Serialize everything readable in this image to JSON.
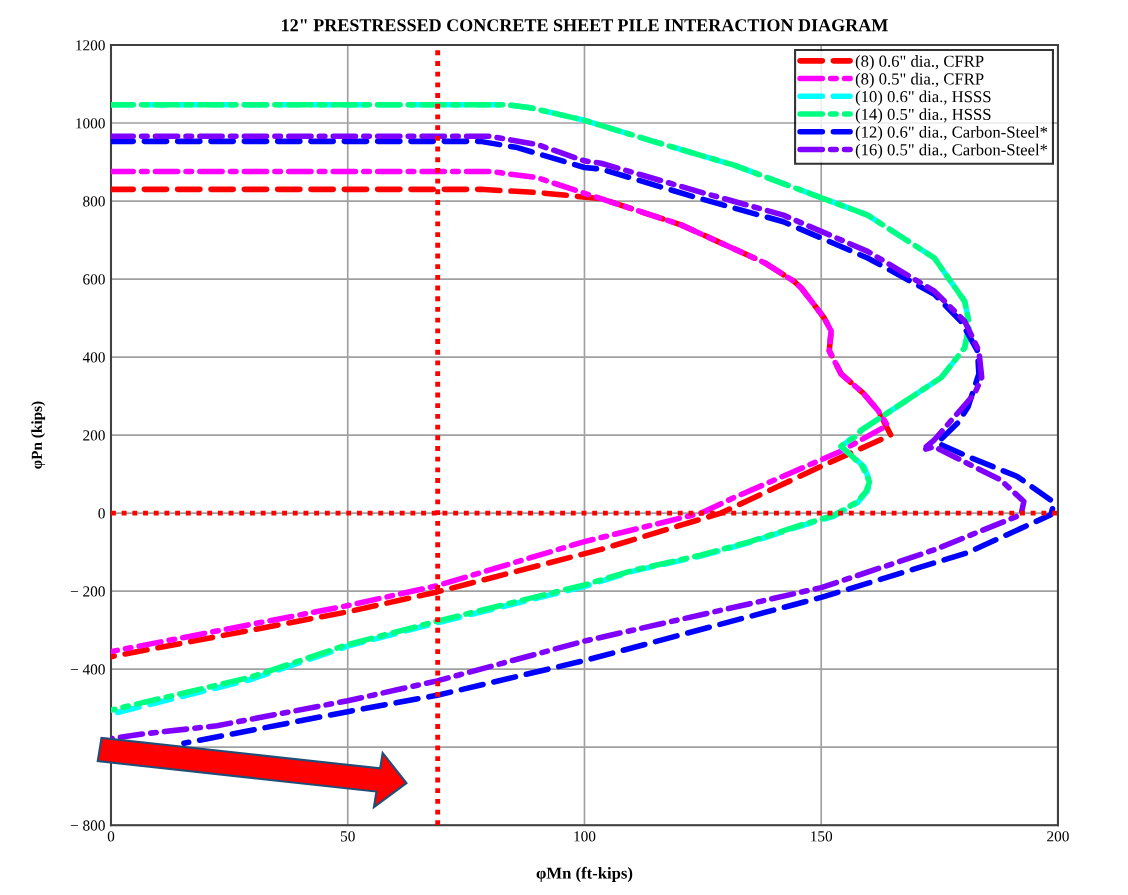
{
  "chart_data": {
    "type": "line",
    "title": "12\" PRESTRESSED CONCRETE SHEET PILE INTERACTION DIAGRAM",
    "xlabel": "φMn (ft-kips)",
    "ylabel": "φPn (kips)",
    "xlim": [
      0,
      200
    ],
    "xticks": [
      0,
      50,
      100,
      150,
      200
    ],
    "ylim": [
      -800,
      1200
    ],
    "yticks": [
      {
        "value": -800,
        "label": "− 800"
      },
      {
        "value": -600,
        "label": null
      },
      {
        "value": -400,
        "label": "− 400"
      },
      {
        "value": -200,
        "label": "− 200"
      },
      0,
      200,
      400,
      600,
      800,
      1000,
      1200
    ],
    "grid": true,
    "legend": "top right",
    "marker": "none",
    "ref_lines": [
      {
        "axis": "y",
        "value": 0,
        "color": "#ff0000",
        "line_style": "dotted"
      },
      {
        "axis": "x",
        "value": 69,
        "color": "#ff0000",
        "line_style": "dotted"
      }
    ],
    "series": [
      {
        "name": "(8) 0.6\" dia., CFRP",
        "color": "#ff0000",
        "line_style": "dashed",
        "x": [
          0,
          40,
          78,
          90,
          103.5,
          120.4,
          128.2,
          138,
          144.3,
          145.8,
          150.6,
          152.1,
          151.7,
          154.2,
          159,
          162,
          164.7,
          150,
          128.8,
          103.5,
          68.9,
          50,
          0
        ],
        "values": [
          830,
          830,
          830,
          822,
          806,
          739,
          696,
          642,
          594,
          577,
          501,
          467,
          416,
          357,
          306,
          263,
          200,
          120,
          0,
          -93,
          -202,
          -253,
          -368
        ]
      },
      {
        "name": "(8) 0.5\" dia., CFRP",
        "color": "#ff00ff",
        "line_style": "dashdot",
        "x": [
          0,
          40,
          80,
          90,
          103.5,
          120.4,
          128.2,
          138,
          144.3,
          145.8,
          150.6,
          152.1,
          151.7,
          154.2,
          159,
          162,
          164,
          154,
          131.6,
          124.6,
          100,
          68.9,
          50,
          0
        ],
        "values": [
          876,
          876,
          876,
          860,
          806,
          739,
          696,
          642,
          594,
          577,
          501,
          467,
          416,
          357,
          306,
          263,
          225,
          158,
          40,
          0,
          -73,
          -186,
          -237,
          -355
        ]
      },
      {
        "name": "(10) 0.6\" dia., HSSS",
        "color": "#00ffff",
        "line_style": "dashed",
        "x": [
          0,
          40,
          83.7,
          88.6,
          100,
          115.4,
          131.6,
          159.8,
          173.9,
          180.3,
          181.3,
          180.3,
          175.4,
          166.9,
          158.4,
          154.2,
          159,
          160.4,
          159.7,
          157.7,
          152.6,
          145.6,
          135,
          124.5,
          110.5,
          100,
          68.9,
          50,
          29.4,
          0
        ],
        "values": [
          1047,
          1047,
          1047,
          1039,
          1007,
          950,
          892,
          764,
          654,
          543,
          484,
          424,
          348,
          280,
          212,
          170,
          120,
          78,
          56,
          27,
          -8,
          -33,
          -75,
          -110,
          -148,
          -188,
          -281,
          -341,
          -427,
          -515
        ]
      },
      {
        "name": "(14) 0.5\" dia., HSSS",
        "color": "#00ff80",
        "line_style": "dashdot",
        "x": [
          0,
          40,
          83.7,
          88.6,
          100,
          115.4,
          131.6,
          159.8,
          173.9,
          180.3,
          181.3,
          180.3,
          175.4,
          166.9,
          158.4,
          157.7,
          154.2,
          158.6,
          160.2,
          159.5,
          157.5,
          152.6,
          145.6,
          135,
          124.5,
          110.5,
          100,
          68.9,
          50,
          29.4,
          0
        ],
        "values": [
          1047,
          1047,
          1047,
          1039,
          1007,
          950,
          892,
          764,
          654,
          543,
          484,
          424,
          348,
          280,
          212,
          200,
          172,
          122,
          80,
          56,
          28,
          -6,
          -31,
          -73,
          -108,
          -146,
          -184,
          -277,
          -337,
          -421,
          -505
        ]
      },
      {
        "name": "(12) 0.6\" dia., Carbon-Steel*",
        "color": "#0000ff",
        "line_style": "dashed",
        "x": [
          0,
          40,
          78,
          85.8,
          100,
          103.5,
          124.5,
          142,
          159.8,
          173.9,
          179.5,
          183,
          183.3,
          181,
          178.8,
          174.5,
          181,
          191.4,
          199.2,
          198.5,
          181,
          150,
          100,
          68.9,
          50,
          15.4
        ],
        "values": [
          953,
          953,
          953,
          937,
          886,
          882,
          806,
          747,
          654,
          561,
          492,
          416,
          357,
          272,
          231,
          180,
          145,
          94,
          27,
          -4,
          -101,
          -216,
          -378,
          -467,
          -509,
          -590
        ]
      },
      {
        "name": "(16) 0.5\" dia., Carbon-Steel*",
        "color": "#8000ff",
        "line_style": "dashdot",
        "x": [
          0,
          40,
          80,
          90,
          100,
          103.5,
          124.5,
          142,
          159.8,
          173.9,
          180.3,
          183.3,
          183.9,
          182.4,
          173.9,
          171.4,
          173.9,
          187.9,
          192.8,
          192.2,
          173.9,
          150,
          100,
          68.9,
          50,
          22.4,
          6.9,
          0
        ],
        "values": [
          966,
          966,
          966,
          945,
          903,
          897,
          823,
          764,
          671,
          569,
          492,
          416,
          348,
          306,
          188,
          162,
          170,
          85,
          30,
          -4,
          -94,
          -191,
          -328,
          -430,
          -481,
          -545,
          -566,
          -578
        ]
      }
    ]
  }
}
